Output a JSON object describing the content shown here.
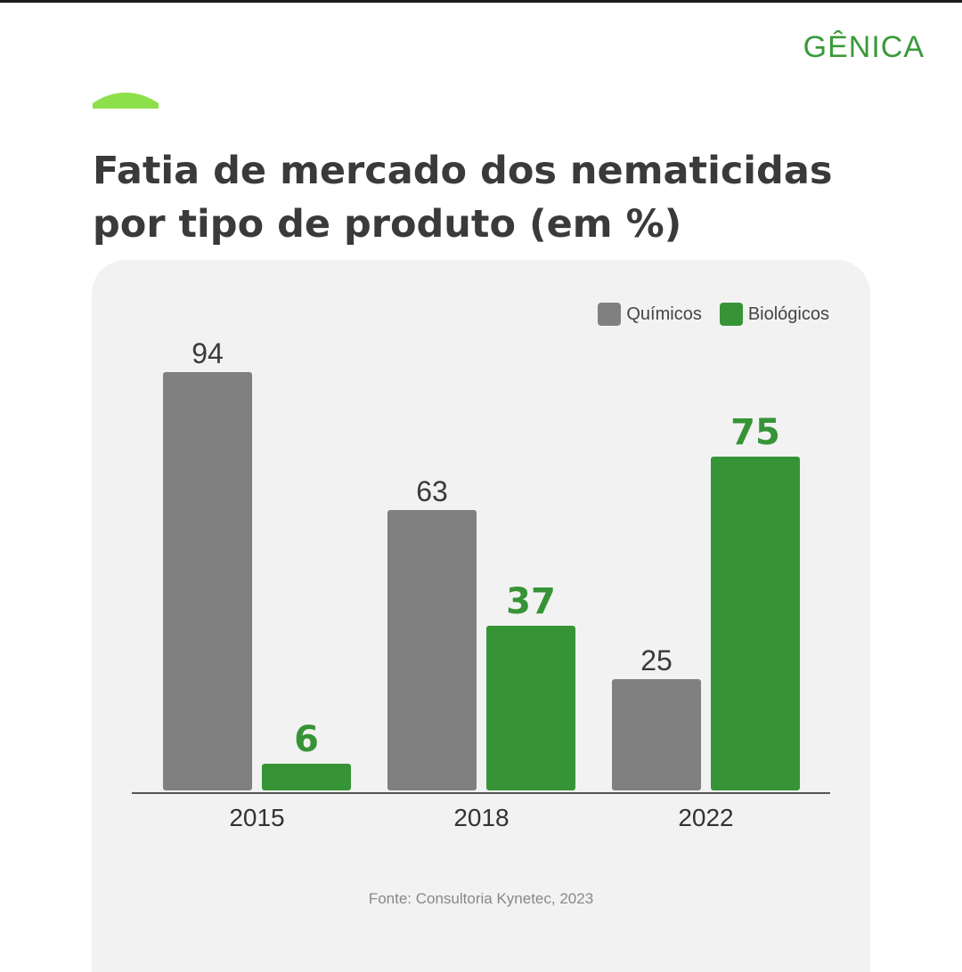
{
  "brand": {
    "name": "GÊNICA",
    "color": "#3a9a3a",
    "accent_color": "#8de04a"
  },
  "header": {
    "title_line1": "Fatia de mercado dos nematicidas",
    "title_line2": "por tipo de produto (em %)"
  },
  "footer": {
    "source": "Fonte: Consultoria Kynetec, 2023"
  },
  "chart_data": {
    "type": "bar",
    "title": "Fatia de mercado dos nematicidas por tipo de produto (em %)",
    "categories": [
      "2015",
      "2018",
      "2022"
    ],
    "series": [
      {
        "name": "Químicos",
        "color": "#808080",
        "values": [
          94,
          63,
          25
        ],
        "label_style": "regular"
      },
      {
        "name": "Biológicos",
        "color": "#369436",
        "values": [
          6,
          37,
          75
        ],
        "label_style": "bold"
      }
    ],
    "ylim": [
      0,
      100
    ],
    "grid": false,
    "legend": "top-right",
    "xlabel": "",
    "ylabel": ""
  }
}
